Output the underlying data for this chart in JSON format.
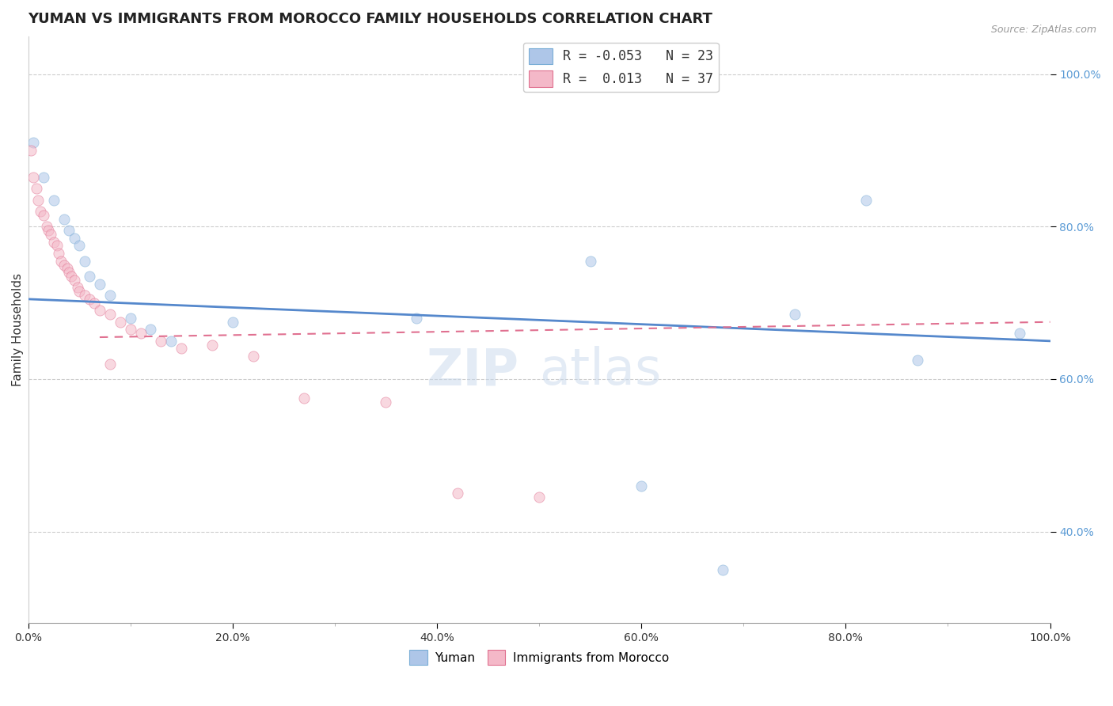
{
  "title": "YUMAN VS IMMIGRANTS FROM MOROCCO FAMILY HOUSEHOLDS CORRELATION CHART",
  "source_text": "Source: ZipAtlas.com",
  "ylabel": "Family Households",
  "legend_label_bottom": [
    "Yuman",
    "Immigrants from Morocco"
  ],
  "series": [
    {
      "name": "Yuman",
      "color": "#aec6e8",
      "edge_color": "#7aaed6",
      "R": -0.053,
      "N": 23,
      "x": [
        0.5,
        1.5,
        2.5,
        3.5,
        4.0,
        4.5,
        5.0,
        5.5,
        6.0,
        7.0,
        8.0,
        10.0,
        12.0,
        14.0,
        20.0,
        38.0,
        55.0,
        60.0,
        68.0,
        75.0,
        82.0,
        87.0,
        97.0
      ],
      "y": [
        91.0,
        86.5,
        83.5,
        81.0,
        79.5,
        78.5,
        77.5,
        75.5,
        73.5,
        72.5,
        71.0,
        68.0,
        66.5,
        65.0,
        67.5,
        68.0,
        75.5,
        46.0,
        35.0,
        68.5,
        83.5,
        62.5,
        66.0
      ]
    },
    {
      "name": "Immigrants from Morocco",
      "color": "#f4b8c8",
      "edge_color": "#e07090",
      "R": 0.013,
      "N": 37,
      "x": [
        0.3,
        0.5,
        0.8,
        1.0,
        1.2,
        1.5,
        1.8,
        2.0,
        2.2,
        2.5,
        2.8,
        3.0,
        3.2,
        3.5,
        3.8,
        4.0,
        4.2,
        4.5,
        4.8,
        5.0,
        5.5,
        6.0,
        6.5,
        7.0,
        8.0,
        9.0,
        10.0,
        11.0,
        13.0,
        15.0,
        18.0,
        22.0,
        27.0,
        35.0,
        42.0,
        50.0,
        8.0
      ],
      "y": [
        90.0,
        86.5,
        85.0,
        83.5,
        82.0,
        81.5,
        80.0,
        79.5,
        79.0,
        78.0,
        77.5,
        76.5,
        75.5,
        75.0,
        74.5,
        74.0,
        73.5,
        73.0,
        72.0,
        71.5,
        71.0,
        70.5,
        70.0,
        69.0,
        68.5,
        67.5,
        66.5,
        66.0,
        65.0,
        64.0,
        64.5,
        63.0,
        57.5,
        57.0,
        45.0,
        44.5,
        62.0
      ]
    }
  ],
  "xlim": [
    0.0,
    100.0
  ],
  "ylim": [
    28.0,
    105.0
  ],
  "yticks": [
    40.0,
    60.0,
    80.0,
    100.0
  ],
  "ytick_labels": [
    "40.0%",
    "60.0%",
    "80.0%",
    "100.0%"
  ],
  "xticks": [
    0.0,
    20.0,
    40.0,
    60.0,
    80.0,
    100.0
  ],
  "xtick_labels": [
    "0.0%",
    "20.0%",
    "40.0%",
    "60.0%",
    "80.0%",
    "100.0%"
  ],
  "background_color": "#ffffff",
  "grid_color": "#cccccc",
  "marker_size": 90,
  "marker_alpha": 0.55,
  "trend_line_blue": {
    "x_start": 0.0,
    "x_end": 100.0,
    "y_start": 70.5,
    "y_end": 65.0
  },
  "trend_line_pink": {
    "x_start": 7.0,
    "x_end": 100.0,
    "y_start": 65.5,
    "y_end": 67.5
  },
  "watermark_zip": "ZIP",
  "watermark_atlas": "atlas",
  "title_fontsize": 13,
  "axis_label_fontsize": 11,
  "tick_fontsize": 10,
  "tick_color": "#5b9bd5",
  "source_fontsize": 9
}
